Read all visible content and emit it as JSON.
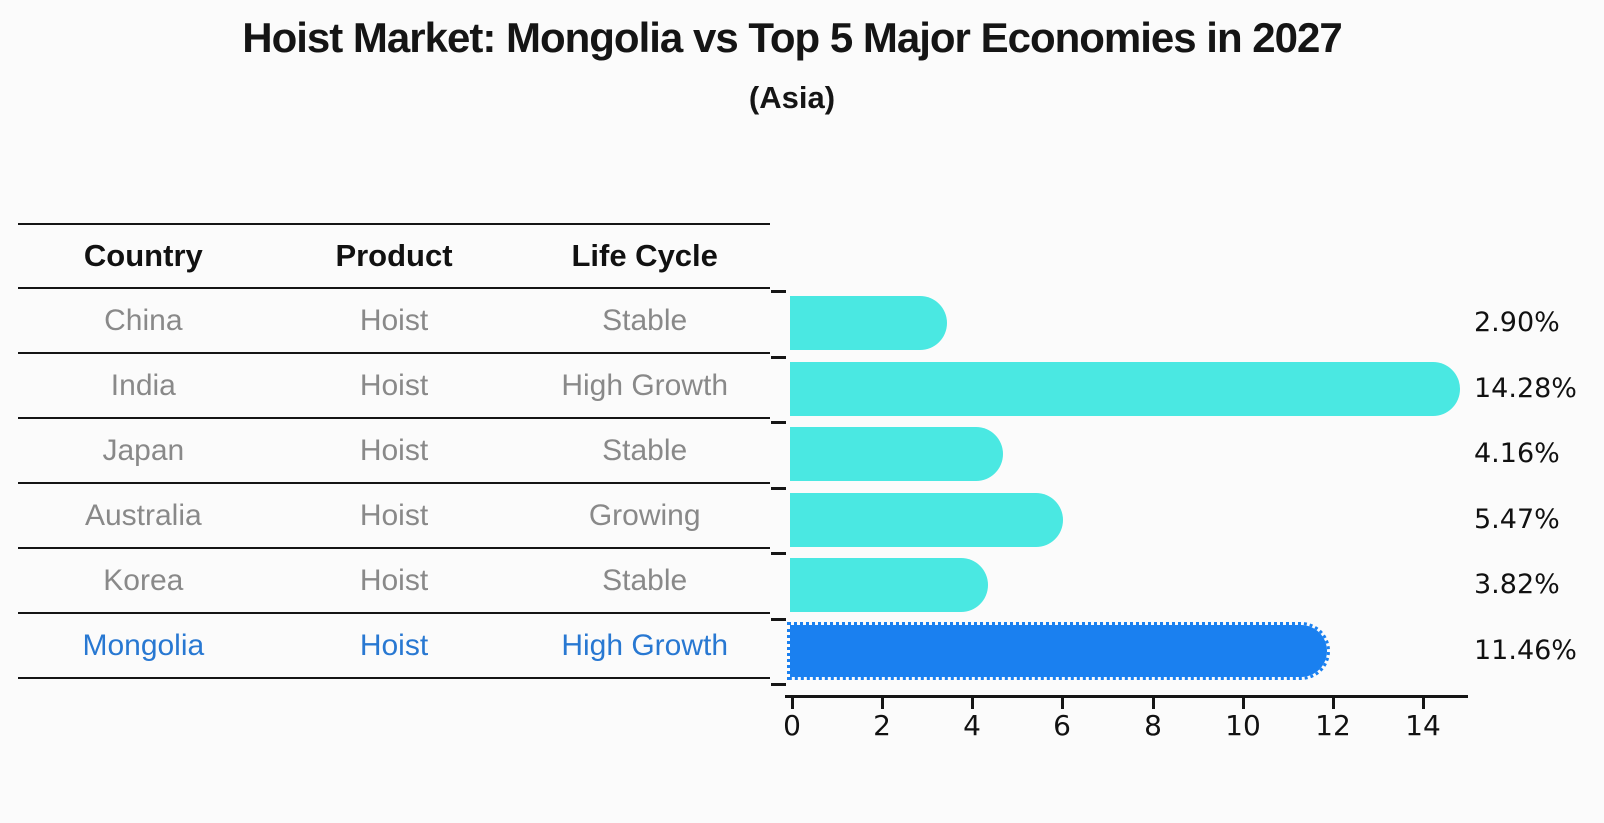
{
  "title": "Hoist Market: Mongolia vs Top 5 Major Economies in 2027",
  "subtitle": "(Asia)",
  "colors": {
    "bar_default": "#4AE8E2",
    "bar_highlight": "#1A80F0",
    "row_text": "#898989",
    "highlight_text": "#2878D2",
    "axis": "#151515",
    "background": "#FBFBFB"
  },
  "table": {
    "headers": [
      "Country",
      "Product",
      "Life Cycle"
    ],
    "rows": [
      {
        "country": "China",
        "product": "Hoist",
        "life_cycle": "Stable",
        "highlight": false
      },
      {
        "country": "India",
        "product": "Hoist",
        "life_cycle": "High Growth",
        "highlight": false
      },
      {
        "country": "Japan",
        "product": "Hoist",
        "life_cycle": "Stable",
        "highlight": false
      },
      {
        "country": "Australia",
        "product": "Hoist",
        "life_cycle": "Growing",
        "highlight": false
      },
      {
        "country": "Korea",
        "product": "Hoist",
        "life_cycle": "Stable",
        "highlight": false
      },
      {
        "country": "Mongolia",
        "product": "Hoist",
        "life_cycle": "High Growth",
        "highlight": true
      }
    ]
  },
  "chart_data": {
    "type": "bar",
    "orientation": "horizontal",
    "title": "Hoist Market: Mongolia vs Top 5 Major Economies in 2027",
    "subtitle": "(Asia)",
    "categories": [
      "China",
      "India",
      "Japan",
      "Australia",
      "Korea",
      "Mongolia"
    ],
    "values": [
      2.9,
      14.28,
      4.16,
      5.47,
      3.82,
      11.46
    ],
    "value_labels": [
      "2.90%",
      "14.28%",
      "4.16%",
      "5.47%",
      "3.82%",
      "11.46%"
    ],
    "highlight_index": 5,
    "bar_color_default": "#4AE8E2",
    "bar_color_highlight": "#1A80F0",
    "xlabel": "",
    "ylabel": "",
    "x_ticks": [
      0,
      2,
      4,
      6,
      8,
      10,
      12,
      14
    ],
    "xlim": [
      0,
      15
    ],
    "grid": false,
    "legend": "none"
  }
}
